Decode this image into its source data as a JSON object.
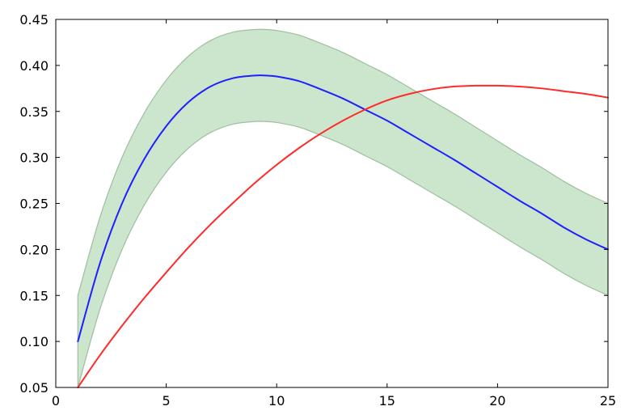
{
  "chart_data": {
    "type": "line",
    "xlim": [
      0,
      25
    ],
    "ylim": [
      0.05,
      0.45
    ],
    "x_ticks": [
      0,
      5,
      10,
      15,
      20,
      25
    ],
    "y_ticks": [
      0.05,
      0.1,
      0.15,
      0.2,
      0.25,
      0.3,
      0.35,
      0.4,
      0.45
    ],
    "x_tick_labels": [
      "0",
      "5",
      "10",
      "15",
      "20",
      "25"
    ],
    "y_tick_labels": [
      "0.05",
      "0.10",
      "0.15",
      "0.20",
      "0.25",
      "0.30",
      "0.35",
      "0.40",
      "0.45"
    ],
    "grid": false,
    "legend": "none",
    "band": {
      "color": "#b0d9b3",
      "edge_color": "#9ebf9f",
      "x": [
        1,
        2,
        3,
        4,
        5,
        6,
        7,
        8,
        9,
        9.5,
        10,
        11,
        12,
        13,
        14,
        15,
        16,
        17,
        18,
        19,
        20,
        21,
        22,
        23,
        24,
        25
      ],
      "lower": [
        0.05,
        0.135,
        0.2,
        0.248,
        0.284,
        0.31,
        0.327,
        0.336,
        0.339,
        0.339,
        0.338,
        0.333,
        0.324,
        0.314,
        0.302,
        0.29,
        0.276,
        0.262,
        0.248,
        0.233,
        0.218,
        0.203,
        0.189,
        0.174,
        0.161,
        0.15
      ],
      "upper": [
        0.15,
        0.235,
        0.3,
        0.348,
        0.384,
        0.41,
        0.427,
        0.436,
        0.439,
        0.439,
        0.438,
        0.433,
        0.424,
        0.414,
        0.402,
        0.39,
        0.376,
        0.362,
        0.348,
        0.333,
        0.318,
        0.303,
        0.289,
        0.274,
        0.261,
        0.25
      ]
    },
    "series": [
      {
        "color": "#1f1fff",
        "x": [
          1,
          2,
          3,
          4,
          5,
          6,
          7,
          8,
          9,
          9.5,
          10,
          11,
          12,
          13,
          14,
          15,
          16,
          17,
          18,
          19,
          20,
          21,
          22,
          23,
          24,
          25
        ],
        "y": [
          0.1,
          0.185,
          0.25,
          0.298,
          0.334,
          0.36,
          0.377,
          0.386,
          0.389,
          0.389,
          0.388,
          0.383,
          0.374,
          0.364,
          0.352,
          0.34,
          0.326,
          0.312,
          0.298,
          0.283,
          0.268,
          0.253,
          0.239,
          0.224,
          0.211,
          0.2
        ]
      },
      {
        "color": "#ff2a2a",
        "x": [
          1,
          2,
          3,
          4,
          5,
          6,
          7,
          8,
          9,
          10,
          11,
          12,
          13,
          14,
          15,
          16,
          17,
          18,
          19,
          19.5,
          20,
          21,
          22,
          23,
          24,
          25
        ],
        "y": [
          0.05,
          0.085,
          0.117,
          0.147,
          0.175,
          0.202,
          0.227,
          0.25,
          0.272,
          0.292,
          0.31,
          0.326,
          0.34,
          0.352,
          0.362,
          0.369,
          0.374,
          0.377,
          0.378,
          0.378,
          0.378,
          0.377,
          0.375,
          0.372,
          0.369,
          0.365
        ]
      }
    ]
  }
}
